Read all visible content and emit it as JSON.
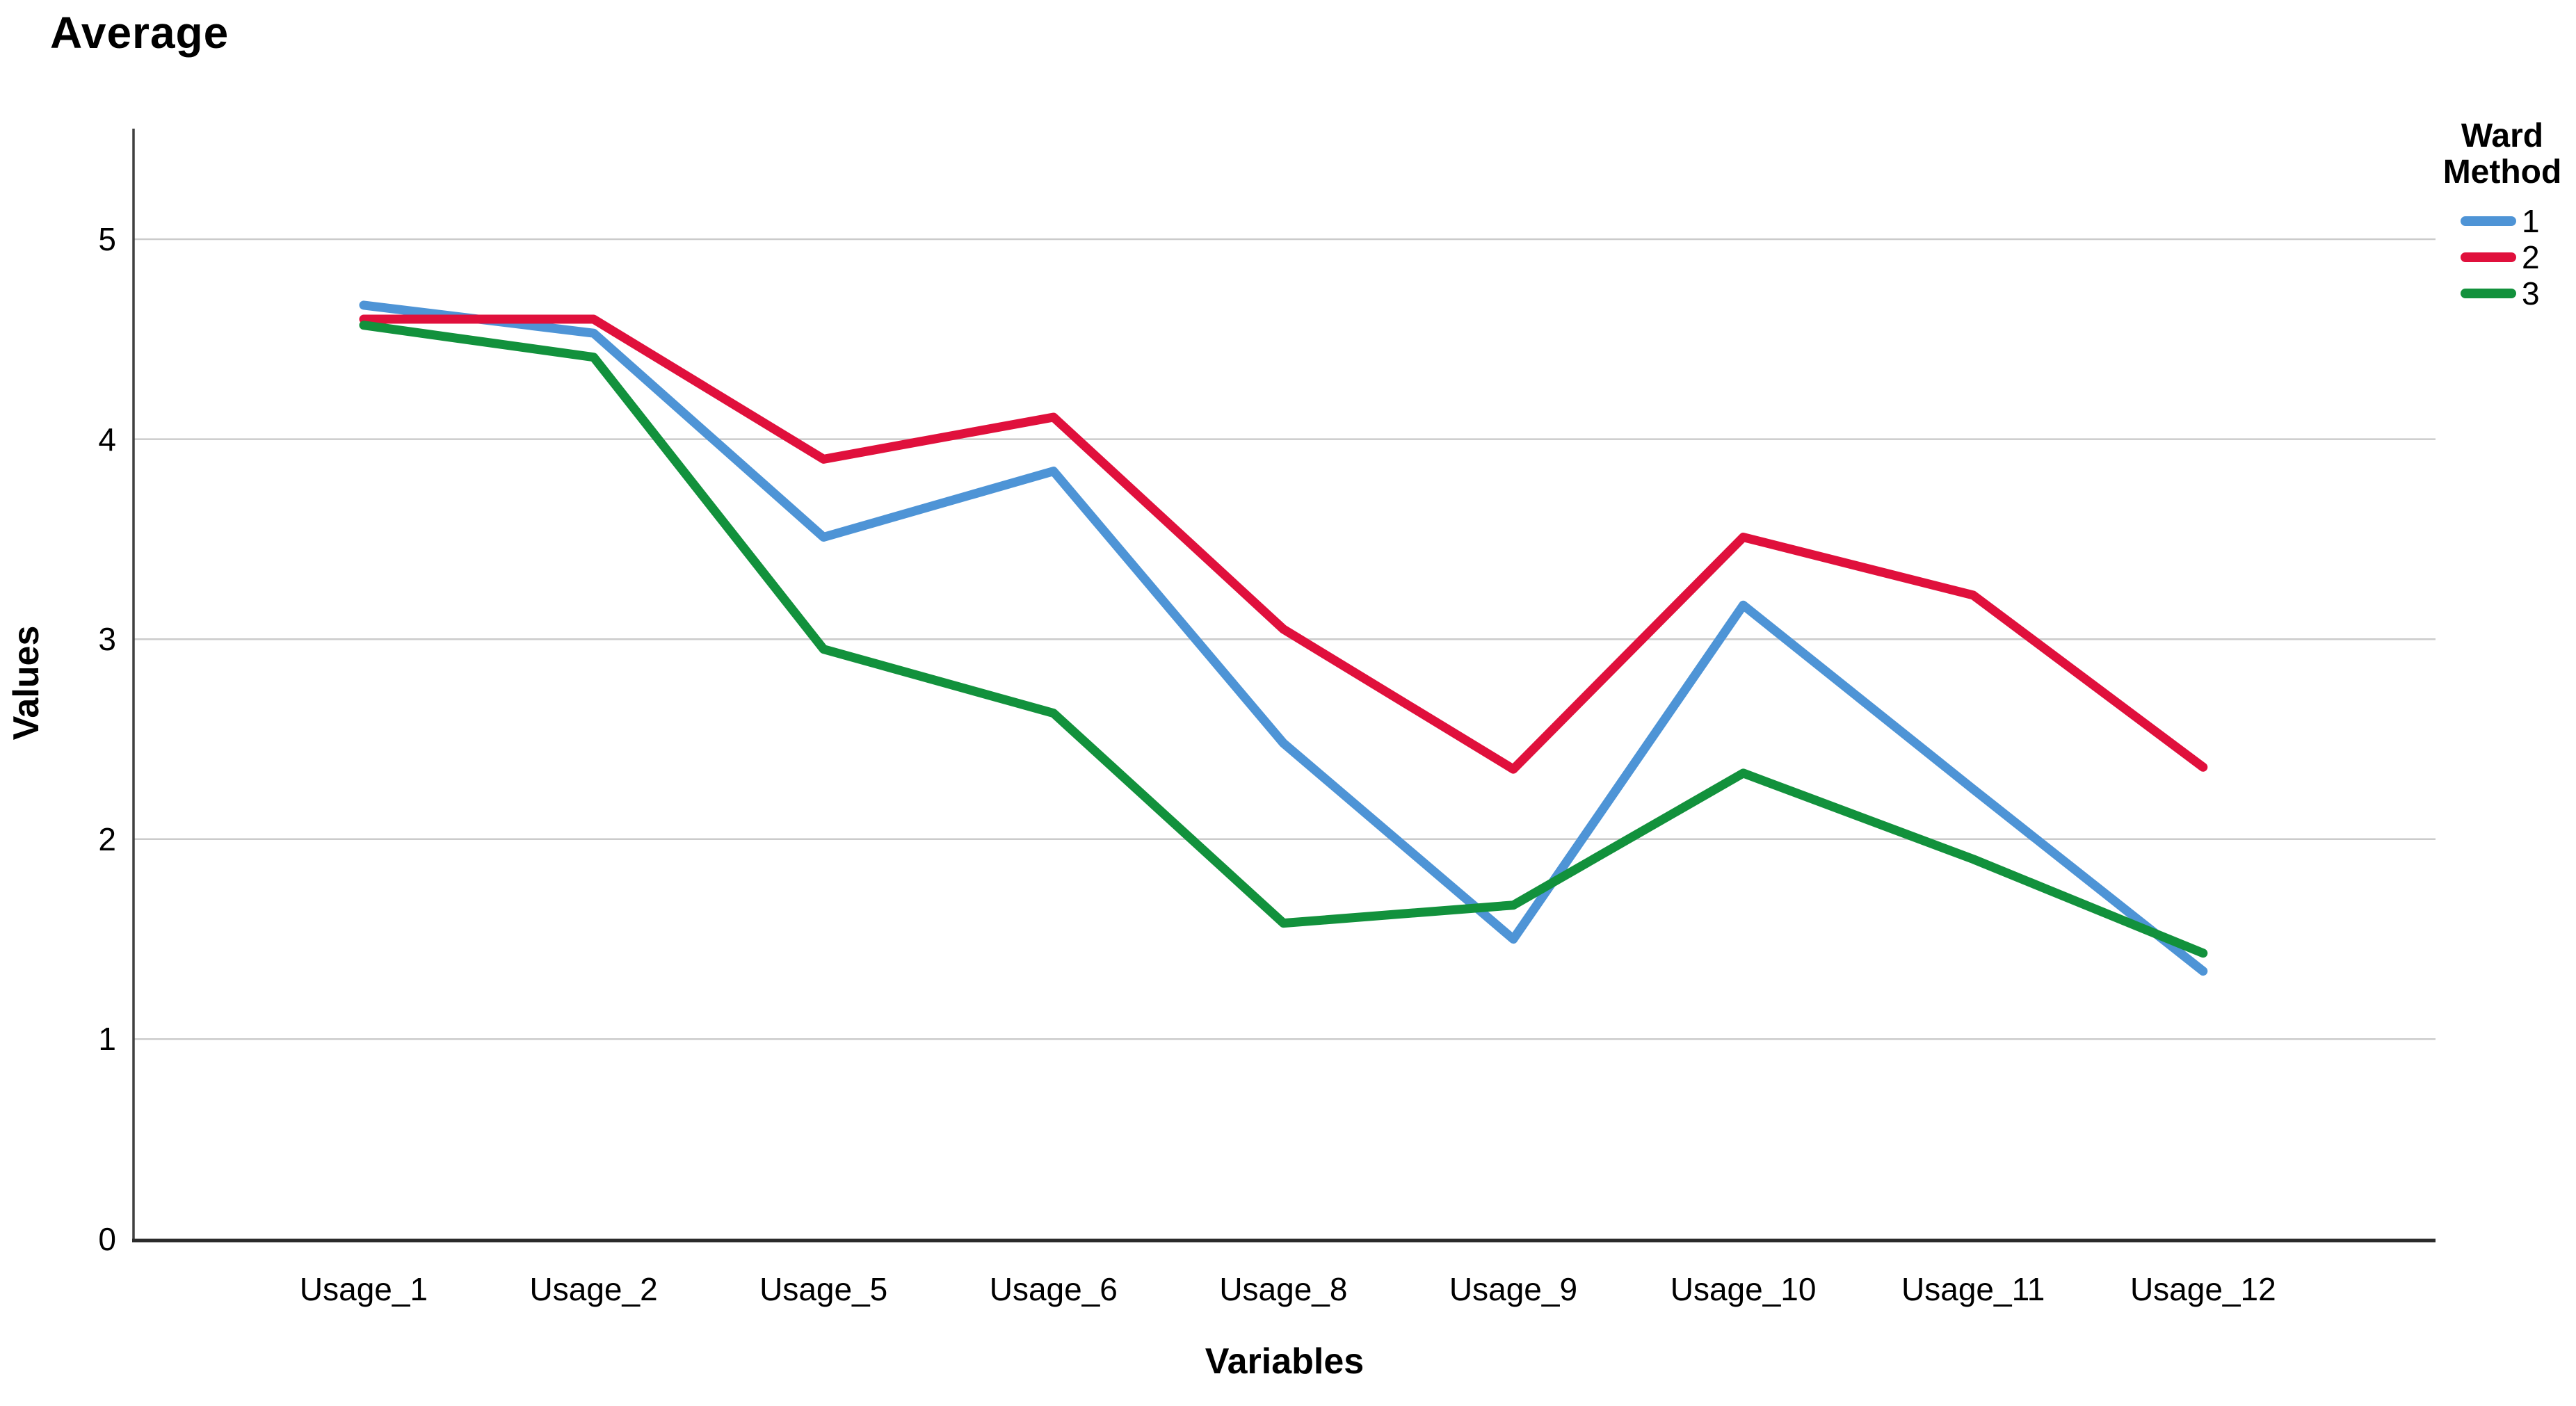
{
  "title": "Average",
  "y_axis": {
    "label": "Values",
    "ticks": [
      "0",
      "1",
      "2",
      "3",
      "4",
      "5"
    ]
  },
  "x_axis": {
    "label": "Variables"
  },
  "legend": {
    "title_lines": [
      "Ward",
      "Method"
    ],
    "items": [
      {
        "label": "1",
        "color": "#4E94D6"
      },
      {
        "label": "2",
        "color": "#E0103C"
      },
      {
        "label": "3",
        "color": "#12913C"
      }
    ]
  },
  "colors": {
    "series1": "#4E94D6",
    "series2": "#E0103C",
    "series3": "#12913C",
    "gridline": "#cbcbcb",
    "y_axis_line": "#404040",
    "x_axis_line": "#2b2b2b",
    "text": "#000000",
    "background": "#ffffff"
  },
  "chart_data": {
    "type": "line",
    "title": "Average",
    "xlabel": "Variables",
    "ylabel": "Values",
    "categories": [
      "Usage_1",
      "Usage_2",
      "Usage_5",
      "Usage_6",
      "Usage_8",
      "Usage_9",
      "Usage_10",
      "Usage_11",
      "Usage_12"
    ],
    "series": [
      {
        "name": "1",
        "color": "#4E94D6",
        "values": [
          4.67,
          4.53,
          3.51,
          3.84,
          2.48,
          1.5,
          3.17,
          2.25,
          1.34
        ]
      },
      {
        "name": "2",
        "color": "#E0103C",
        "values": [
          4.6,
          4.6,
          3.9,
          4.11,
          3.05,
          2.35,
          3.51,
          3.22,
          2.36
        ]
      },
      {
        "name": "3",
        "color": "#12913C",
        "values": [
          4.57,
          4.41,
          2.95,
          2.63,
          1.58,
          1.67,
          2.33,
          1.9,
          1.43
        ]
      }
    ],
    "ylim": [
      0,
      5.56
    ],
    "yticks": [
      0,
      1,
      2,
      3,
      4,
      5
    ],
    "grid": true,
    "grid_axis": "y",
    "legend_title": "Ward Method",
    "legend_position": "top-right"
  }
}
